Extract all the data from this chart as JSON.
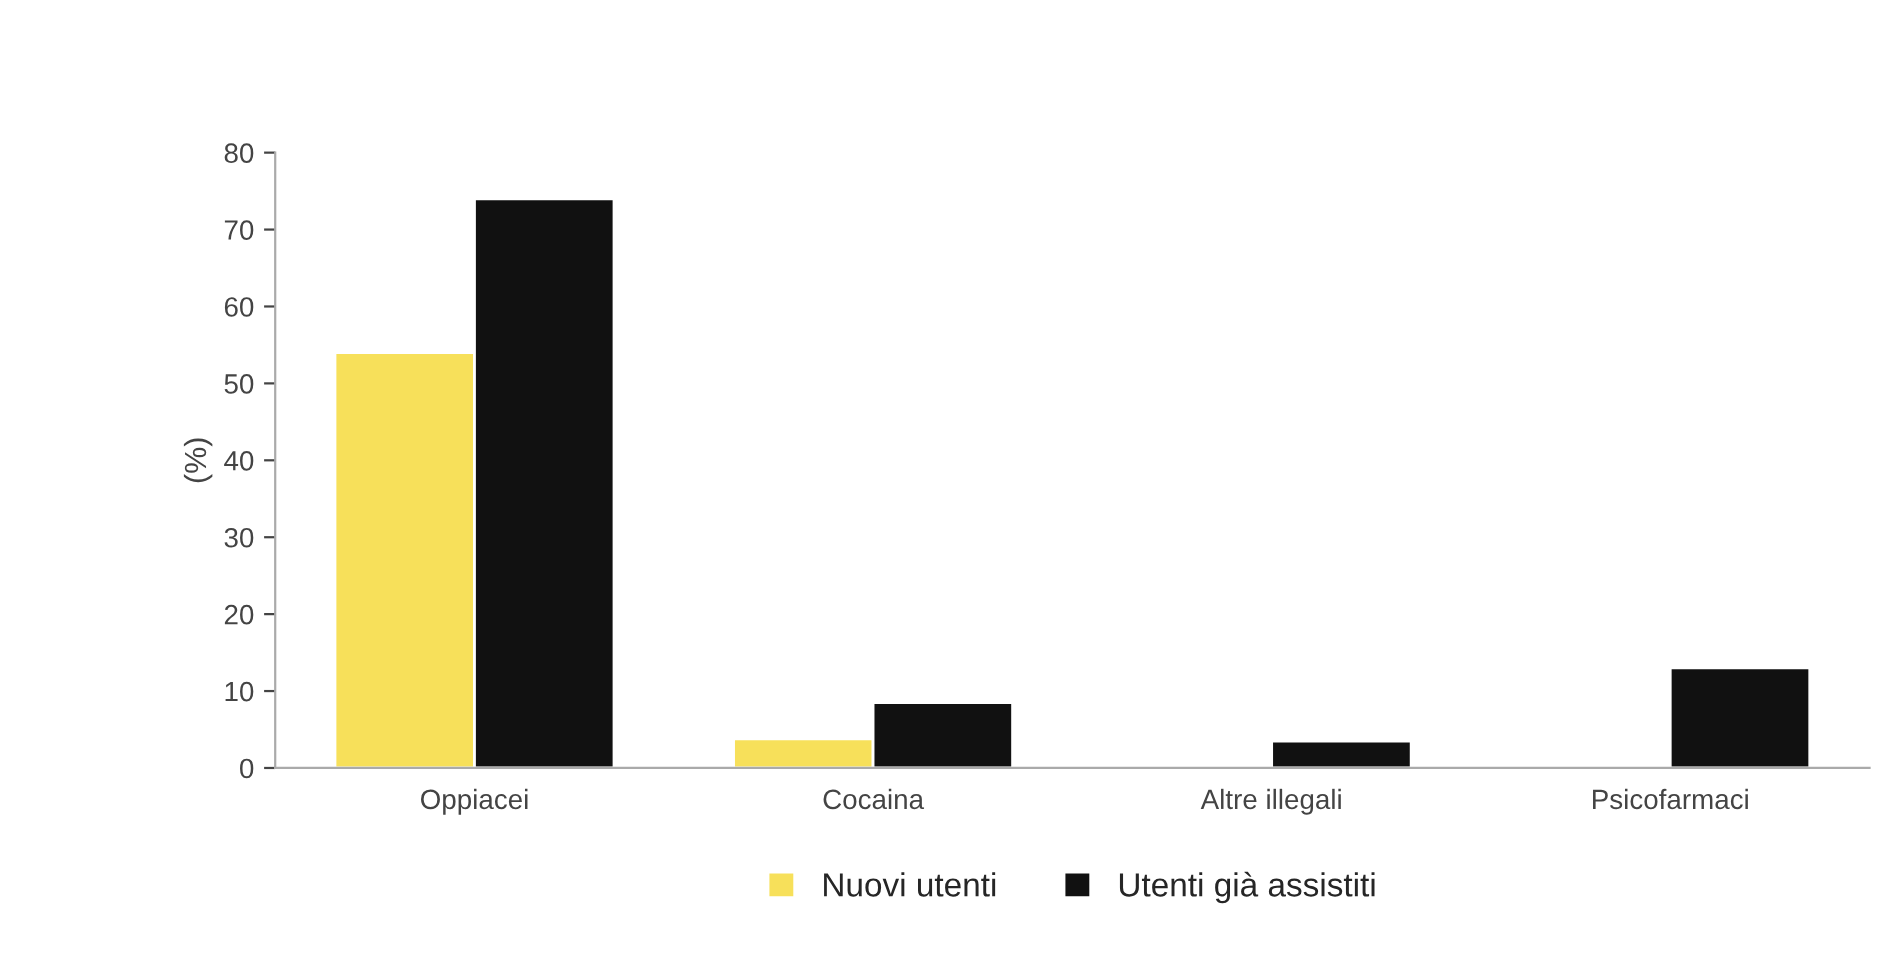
{
  "chart_data": {
    "type": "bar",
    "ylabel": "(%)",
    "categories": [
      "Oppiacei",
      "Cocaina",
      "Altre illegali",
      "Psicofarmaci"
    ],
    "series": [
      {
        "name": "Nuovi utenti",
        "color": "#f7e05a",
        "values": [
          54,
          3.8,
          null,
          null
        ]
      },
      {
        "name": "Utenti già assistiti",
        "color": "#111111",
        "values": [
          74,
          8.5,
          3.5,
          13
        ]
      }
    ],
    "ylim": [
      0,
      80
    ],
    "yticks": [
      0,
      10,
      20,
      30,
      40,
      50,
      60,
      70,
      80
    ],
    "grid": false,
    "legend": "bottom"
  }
}
